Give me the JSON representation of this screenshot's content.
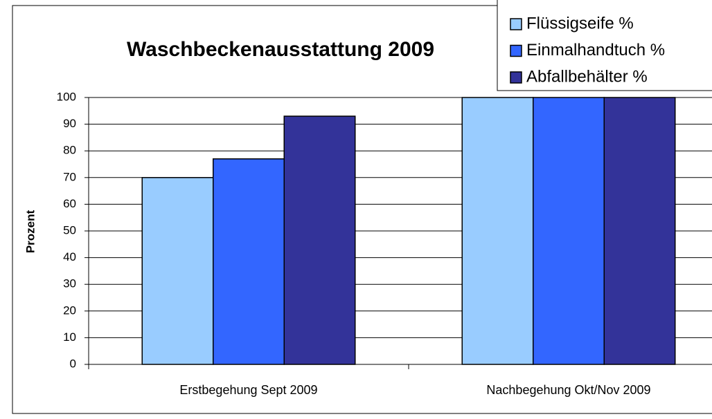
{
  "chart_data": {
    "type": "bar",
    "title": "Waschbeckenausstattung 2009",
    "y_label": "Prozent",
    "categories": [
      "Erstbegehung Sept 2009",
      "Nachbegehung Okt/Nov 2009"
    ],
    "series": [
      {
        "name": "Flüssigseife %",
        "color": "#99ccff",
        "values": [
          70,
          100
        ]
      },
      {
        "name": "Einmalhandtuch %",
        "color": "#3366ff",
        "values": [
          77,
          100
        ]
      },
      {
        "name": "Abfallbehälter %",
        "color": "#333399",
        "values": [
          93,
          100
        ]
      }
    ],
    "ylim": [
      0,
      100
    ],
    "yticks": [
      0,
      10,
      20,
      30,
      40,
      50,
      60,
      70,
      80,
      90,
      100
    ],
    "grid": true,
    "legend": "top-right"
  }
}
